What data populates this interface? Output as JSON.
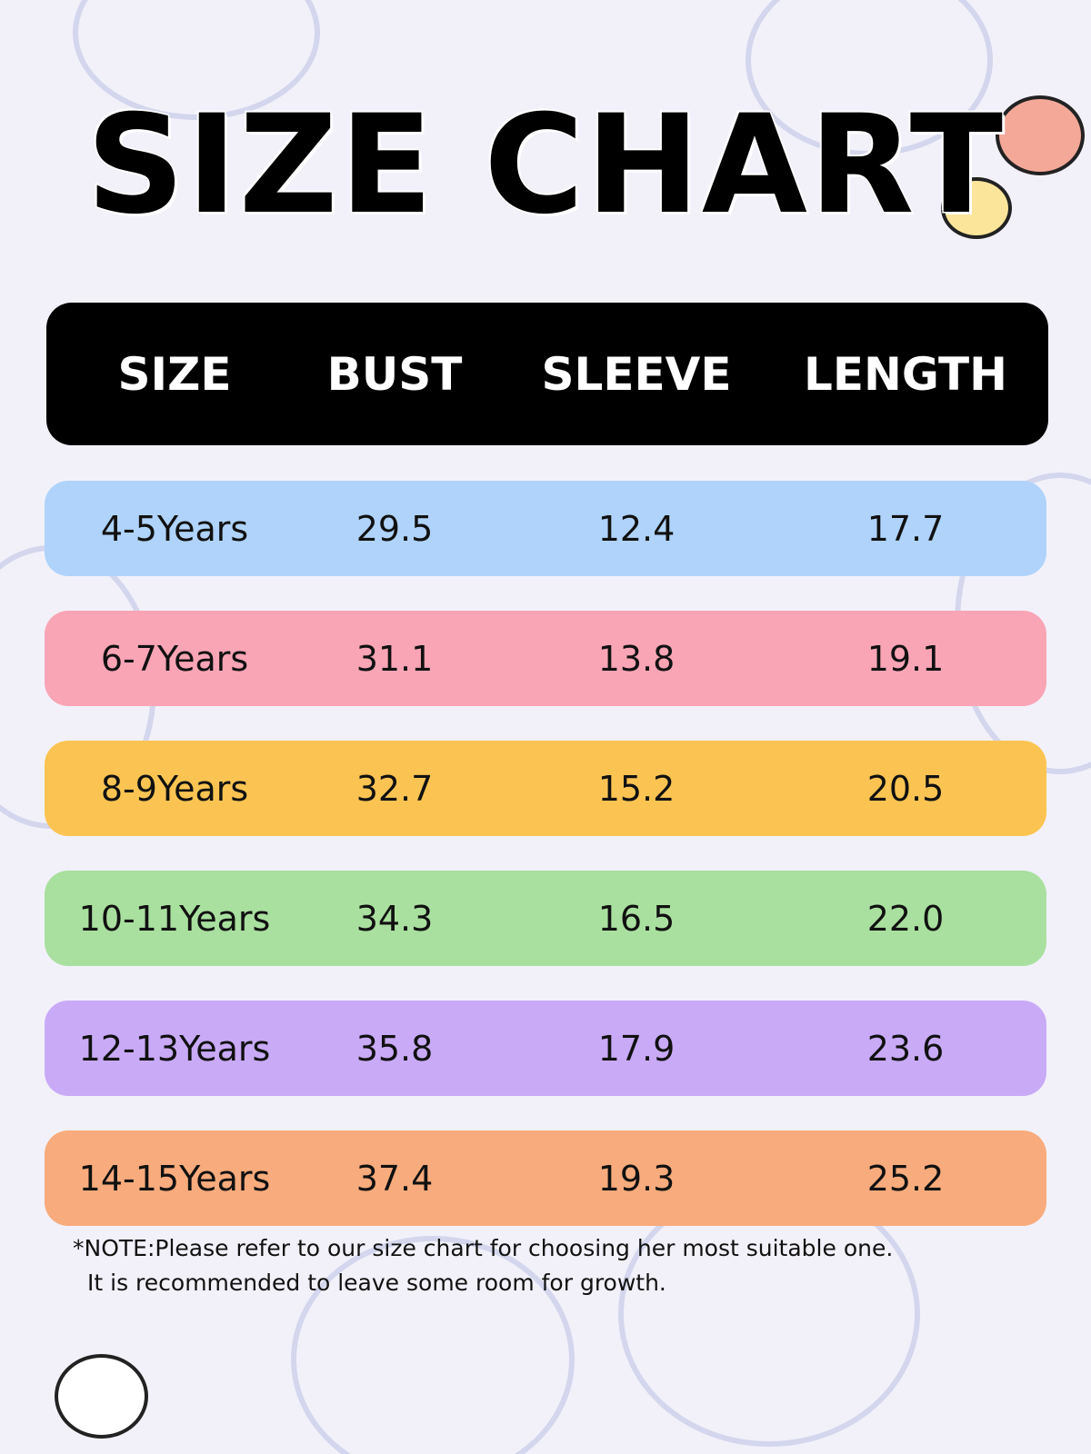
{
  "header": {
    "title": "SIZE CHART"
  },
  "table": {
    "columns": [
      "SIZE",
      "BUST",
      "SLEEVE",
      "LENGTH"
    ],
    "rows": [
      [
        "4-5Years",
        "29.5",
        "12.4",
        "17.7"
      ],
      [
        "6-7Years",
        "31.1",
        "13.8",
        "19.1"
      ],
      [
        "8-9Years",
        "32.7",
        "15.2",
        "20.5"
      ],
      [
        "10-11Years",
        "34.3",
        "16.5",
        "22.0"
      ],
      [
        "12-13Years",
        "35.8",
        "17.9",
        "23.6"
      ],
      [
        "14-15Years",
        "37.4",
        "19.3",
        "25.2"
      ]
    ]
  },
  "note": [
    "*NOTE:Please refer to our size chart for choosing her most suitable one.",
    "It is recommended to leave some room for growth."
  ]
}
